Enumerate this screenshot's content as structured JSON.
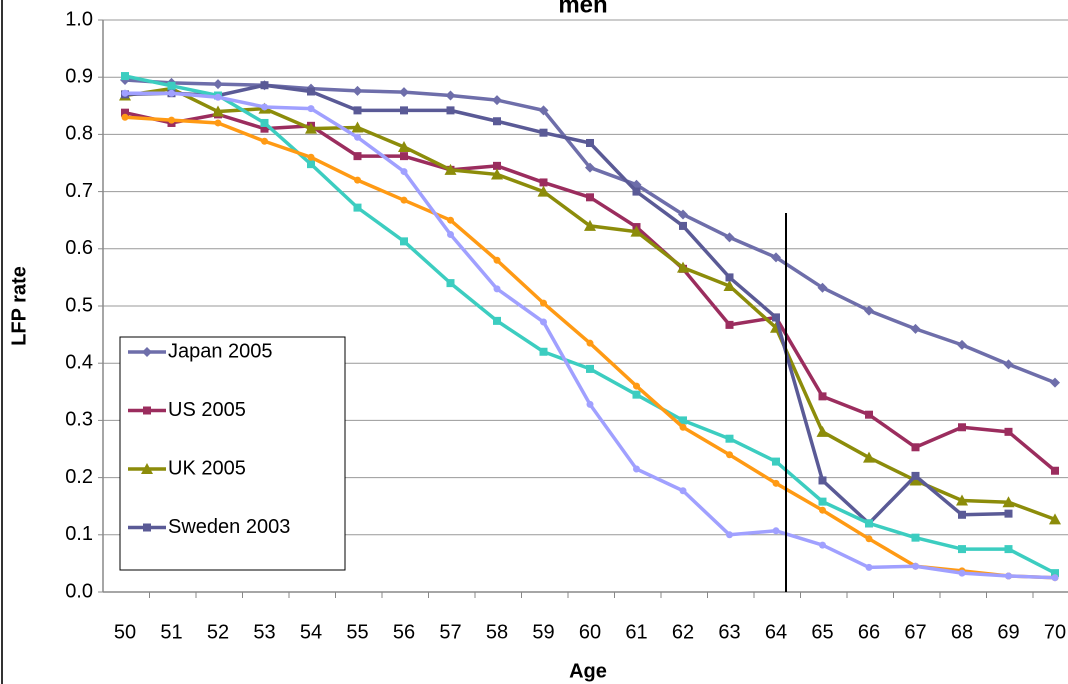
{
  "chart_data": {
    "type": "line",
    "title": "men",
    "x_label": "Age",
    "y_label": "LFP rate",
    "categories": [
      "50",
      "51",
      "52",
      "53",
      "54",
      "55",
      "56",
      "57",
      "58",
      "59",
      "60",
      "61",
      "62",
      "63",
      "64",
      "65",
      "66",
      "67",
      "68",
      "69",
      "70"
    ],
    "ylim": [
      0,
      1
    ],
    "yticks": [
      {
        "value": 0,
        "label": "0.0"
      },
      0.1,
      0.2,
      0.3,
      0.4,
      0.5,
      0.6,
      0.7,
      0.8,
      0.9,
      {
        "value": 1,
        "label": "1.0"
      }
    ],
    "grid": true,
    "series": [
      {
        "name": "Japan 2005",
        "color": "#6e6eaa",
        "marker": "diamond",
        "values": [
          0.895,
          0.89,
          0.888,
          0.886,
          0.88,
          0.876,
          0.874,
          0.868,
          0.86,
          0.842,
          0.742,
          0.712,
          0.66,
          0.62,
          0.585,
          0.532,
          0.492,
          0.46,
          0.432,
          0.398,
          0.366
        ]
      },
      {
        "name": "US 2005",
        "color": "#9b2d5e",
        "marker": "square",
        "values": [
          0.838,
          0.82,
          0.835,
          0.81,
          0.815,
          0.762,
          0.762,
          0.738,
          0.745,
          0.716,
          0.69,
          0.638,
          0.565,
          0.467,
          0.48,
          0.342,
          0.31,
          0.253,
          0.288,
          0.28,
          0.212
        ]
      },
      {
        "name": "UK 2005",
        "color": "#8c8c0a",
        "marker": "triangle",
        "values": [
          0.868,
          0.88,
          0.84,
          0.845,
          0.81,
          0.812,
          0.778,
          0.738,
          0.73,
          0.7,
          0.64,
          0.63,
          0.567,
          0.535,
          0.462,
          0.28,
          0.235,
          0.195,
          0.16,
          0.157,
          0.127
        ]
      },
      {
        "name": "Sweden 2003",
        "color": "#5a5a96",
        "marker": "square",
        "values": [
          0.87,
          0.872,
          0.868,
          0.886,
          0.875,
          0.842,
          0.842,
          0.842,
          0.823,
          0.803,
          0.785,
          0.7,
          0.64,
          0.55,
          0.48,
          0.195,
          0.12,
          0.203,
          0.135,
          0.137,
          null
        ]
      },
      {
        "color": "#3ccdc0",
        "marker": "square",
        "values": [
          0.902,
          0.885,
          0.868,
          0.82,
          0.748,
          0.672,
          0.613,
          0.54,
          0.474,
          0.42,
          0.39,
          0.345,
          0.3,
          0.268,
          0.228,
          0.158,
          0.12,
          0.095,
          0.075,
          0.075,
          0.033
        ]
      },
      {
        "color": "#ff9a14",
        "marker": "circle",
        "values": [
          0.83,
          0.825,
          0.82,
          0.788,
          0.76,
          0.72,
          0.685,
          0.65,
          0.58,
          0.505,
          0.435,
          0.36,
          0.288,
          0.24,
          0.19,
          0.143,
          0.093,
          0.045,
          0.037,
          0.028,
          0.025
        ]
      },
      {
        "color": "#a0a0ff",
        "marker": "circle",
        "values": [
          0.872,
          0.872,
          0.865,
          0.848,
          0.845,
          0.795,
          0.735,
          0.625,
          0.53,
          0.472,
          0.328,
          0.215,
          0.177,
          0.1,
          0.107,
          0.082,
          0.043,
          0.045,
          0.033,
          0.028,
          0.025
        ]
      }
    ]
  }
}
